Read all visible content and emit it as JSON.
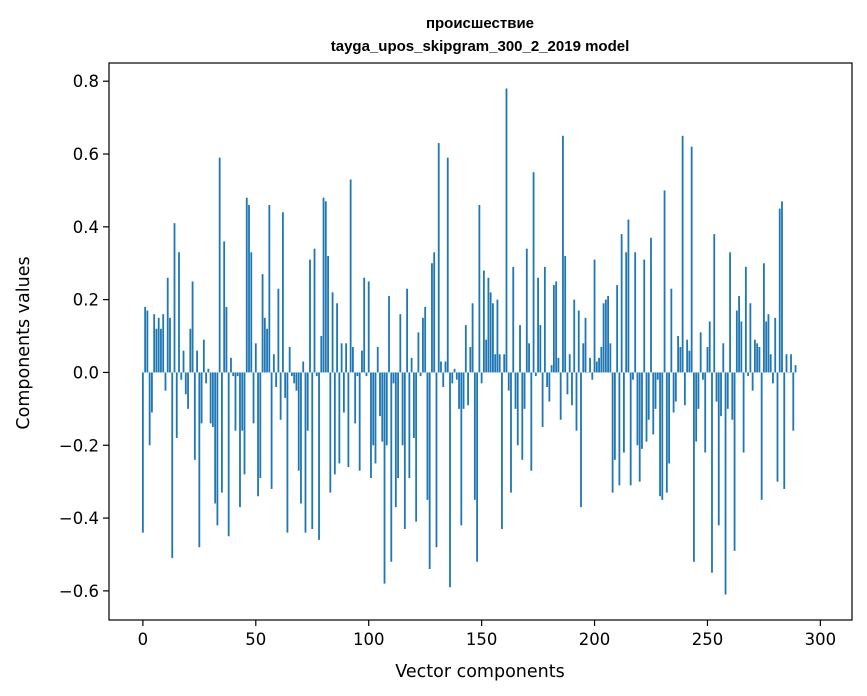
{
  "chart_data": {
    "type": "bar",
    "title": "происшествие",
    "subtitle": "tayga_upos_skipgram_300_2_2019 model",
    "xlabel": "Vector components",
    "ylabel": "Components values",
    "xlim": [
      -15,
      314
    ],
    "ylim": [
      -0.68,
      0.85
    ],
    "xticks": [
      0,
      50,
      100,
      150,
      200,
      250,
      300
    ],
    "xtick_labels": [
      "0",
      "50",
      "100",
      "150",
      "200",
      "250",
      "300"
    ],
    "yticks": [
      -0.6,
      -0.4,
      -0.2,
      0.0,
      0.2,
      0.4,
      0.6,
      0.8
    ],
    "ytick_labels": [
      "−0.6",
      "−0.4",
      "−0.2",
      "0.0",
      "0.2",
      "0.4",
      "0.6",
      "0.8"
    ],
    "bar_color": "#1f77b4",
    "grid": false,
    "values": [
      -0.44,
      0.18,
      0.17,
      -0.2,
      -0.11,
      0.16,
      0.12,
      0.15,
      0.12,
      0.16,
      -0.05,
      0.26,
      0.15,
      -0.51,
      0.41,
      -0.18,
      0.33,
      -0.02,
      0.06,
      -0.06,
      -0.1,
      0.12,
      0.25,
      -0.24,
      0.06,
      -0.48,
      -0.14,
      0.09,
      -0.03,
      0.01,
      -0.14,
      -0.15,
      -0.36,
      -0.42,
      0.59,
      -0.33,
      0.36,
      0.18,
      -0.45,
      0.04,
      -0.01,
      -0.16,
      -0.01,
      -0.37,
      -0.16,
      -0.28,
      0.48,
      0.46,
      0.33,
      -0.14,
      0.08,
      -0.34,
      -0.29,
      0.27,
      0.15,
      0.12,
      0.46,
      -0.32,
      0.05,
      -0.04,
      0.23,
      -0.13,
      0.44,
      -0.07,
      -0.44,
      0.07,
      -0.01,
      -0.03,
      -0.05,
      -0.27,
      -0.36,
      0.03,
      -0.44,
      -0.16,
      0.31,
      -0.43,
      0.34,
      -0.01,
      -0.46,
      0.1,
      0.48,
      0.47,
      0.32,
      -0.33,
      0.22,
      -0.28,
      0.19,
      -0.25,
      0.08,
      -0.11,
      0.08,
      -0.26,
      0.53,
      0.07,
      -0.14,
      -0.01,
      -0.27,
      0.06,
      0.26,
      -0.01,
      0.25,
      -0.29,
      -0.2,
      -0.25,
      0.07,
      -0.12,
      -0.19,
      -0.58,
      -0.2,
      0.21,
      -0.52,
      -0.03,
      -0.37,
      -0.29,
      0.16,
      -0.2,
      -0.43,
      0.23,
      -0.29,
      0.04,
      -0.18,
      -0.41,
      0.11,
      -0.01,
      0.15,
      0.18,
      -0.35,
      -0.54,
      0.3,
      0.33,
      -0.48,
      0.63,
      0.03,
      -0.04,
      0.03,
      0.59,
      -0.59,
      -0.03,
      0.01,
      -0.02,
      -0.1,
      -0.42,
      -0.1,
      0.13,
      -0.09,
      0.07,
      0.19,
      -0.35,
      -0.52,
      0.46,
      -0.03,
      0.28,
      0.09,
      0.26,
      0.22,
      0.19,
      0.05,
      0.2,
      0.05,
      -0.43,
      0.05,
      0.78,
      -0.05,
      -0.33,
      0.29,
      -0.1,
      -0.2,
      0.13,
      -0.24,
      -0.1,
      0.34,
      0.08,
      -0.27,
      0.55,
      -0.01,
      0.26,
      0.13,
      -0.15,
      0.29,
      -0.04,
      -0.08,
      0.02,
      0.24,
      0.25,
      0.04,
      -0.13,
      0.65,
      0.32,
      -0.06,
      0.05,
      -0.09,
      0.2,
      -0.16,
      0.17,
      -0.37,
      0.08,
      0.15,
      0.0,
      0.04,
      -0.02,
      0.31,
      0.03,
      0.04,
      0.07,
      0.19,
      0.2,
      0.21,
      0.08,
      -0.33,
      -0.24,
      0.24,
      -0.31,
      0.38,
      -0.22,
      0.33,
      0.42,
      -0.31,
      -0.02,
      0.33,
      -0.2,
      -0.3,
      -0.21,
      0.31,
      -0.19,
      -0.13,
      0.37,
      -0.17,
      -0.1,
      -0.02,
      -0.34,
      -0.35,
      0.5,
      -0.33,
      -0.25,
      0.23,
      -0.11,
      -0.08,
      0.1,
      0.07,
      0.65,
      -0.09,
      0.09,
      0.06,
      0.62,
      -0.52,
      -0.19,
      -0.1,
      0.11,
      -0.02,
      -0.22,
      0.07,
      0.14,
      -0.55,
      0.38,
      -0.08,
      -0.42,
      -0.12,
      0.08,
      -0.61,
      -0.1,
      0.33,
      -0.13,
      -0.49,
      0.17,
      0.21,
      0.14,
      -0.22,
      0.29,
      -0.01,
      0.19,
      -0.05,
      0.09,
      0.08,
      0.07,
      -0.35,
      0.3,
      0.14,
      0.16,
      0.05,
      -0.03,
      0.15,
      -0.3,
      0.45,
      0.47,
      -0.32,
      0.05,
      0.0,
      0.05,
      -0.16,
      0.02
    ]
  }
}
